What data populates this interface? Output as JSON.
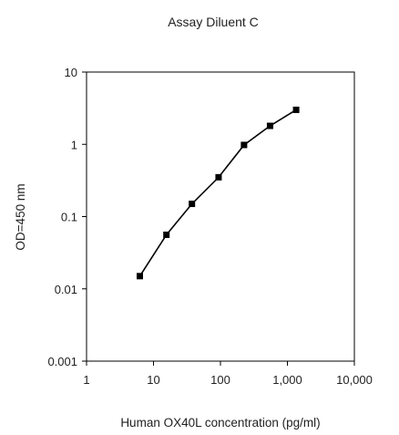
{
  "chart_data": {
    "type": "line",
    "title": "Assay Diluent C",
    "xlabel": "Human OX40L concentration (pg/ml)",
    "ylabel": "OD=450 nm",
    "xscale": "log",
    "yscale": "log",
    "xlim": [
      1,
      10000
    ],
    "ylim": [
      0.001,
      10
    ],
    "xticks": [
      1,
      10,
      100,
      1000,
      10000
    ],
    "xtick_labels": [
      "1",
      "10",
      "100",
      "1,000",
      "10,000"
    ],
    "yticks": [
      0.001,
      0.01,
      0.1,
      1,
      10
    ],
    "ytick_labels": [
      "0.001",
      "0.01",
      "0.1",
      "1",
      "10"
    ],
    "grid": false,
    "legend": "none",
    "series": [
      {
        "marker": "square",
        "color": "#000000",
        "x": [
          6.25,
          15.6,
          37.5,
          93.75,
          225,
          550,
          1350
        ],
        "y": [
          0.015,
          0.056,
          0.15,
          0.35,
          0.98,
          1.8,
          3.0
        ]
      }
    ]
  }
}
